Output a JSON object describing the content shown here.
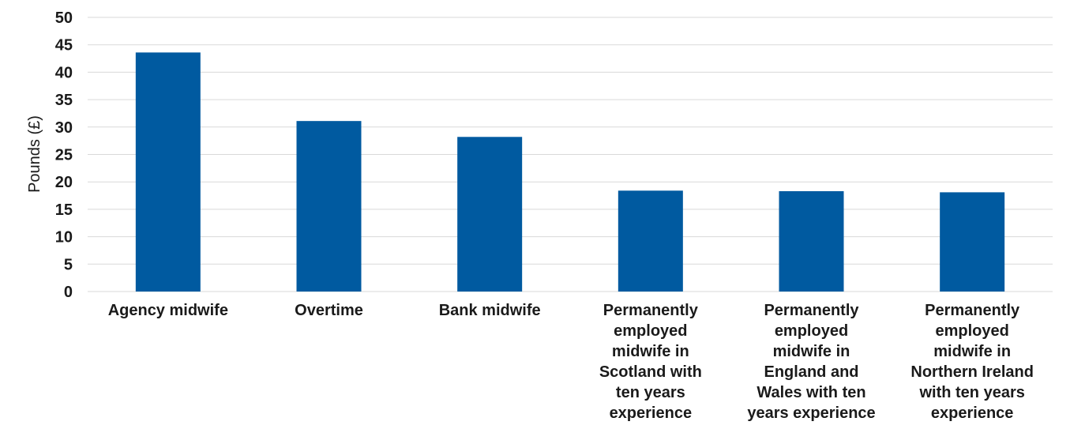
{
  "chart_data": {
    "type": "bar",
    "title": "",
    "xlabel": "",
    "ylabel": "Pounds (£)",
    "ylim": [
      0,
      50
    ],
    "yticks": [
      0,
      5,
      10,
      15,
      20,
      25,
      30,
      35,
      40,
      45,
      50
    ],
    "grid": true,
    "legend": "none",
    "categories": [
      "Agency midwife",
      "Overtime",
      "Bank midwife",
      "Permanently employed midwife in Scotland with ten years experience",
      "Permanently employed midwife in England and Wales with ten years experience",
      "Permanently employed midwife in Northern Ireland with ten years experience"
    ],
    "category_lines": [
      [
        "Agency midwife"
      ],
      [
        "Overtime"
      ],
      [
        "Bank midwife"
      ],
      [
        "Permanently",
        "employed",
        "midwife in",
        "Scotland with",
        "ten years",
        "experience"
      ],
      [
        "Permanently",
        "employed",
        "midwife in",
        "England and",
        "Wales with ten",
        "years experience"
      ],
      [
        "Permanently",
        "employed",
        "midwife in",
        "Northern Ireland",
        "with ten years",
        "experience"
      ]
    ],
    "values": [
      43.6,
      31.1,
      28.2,
      18.4,
      18.3,
      18.1
    ],
    "colors": {
      "bar": "#005AA0"
    }
  }
}
